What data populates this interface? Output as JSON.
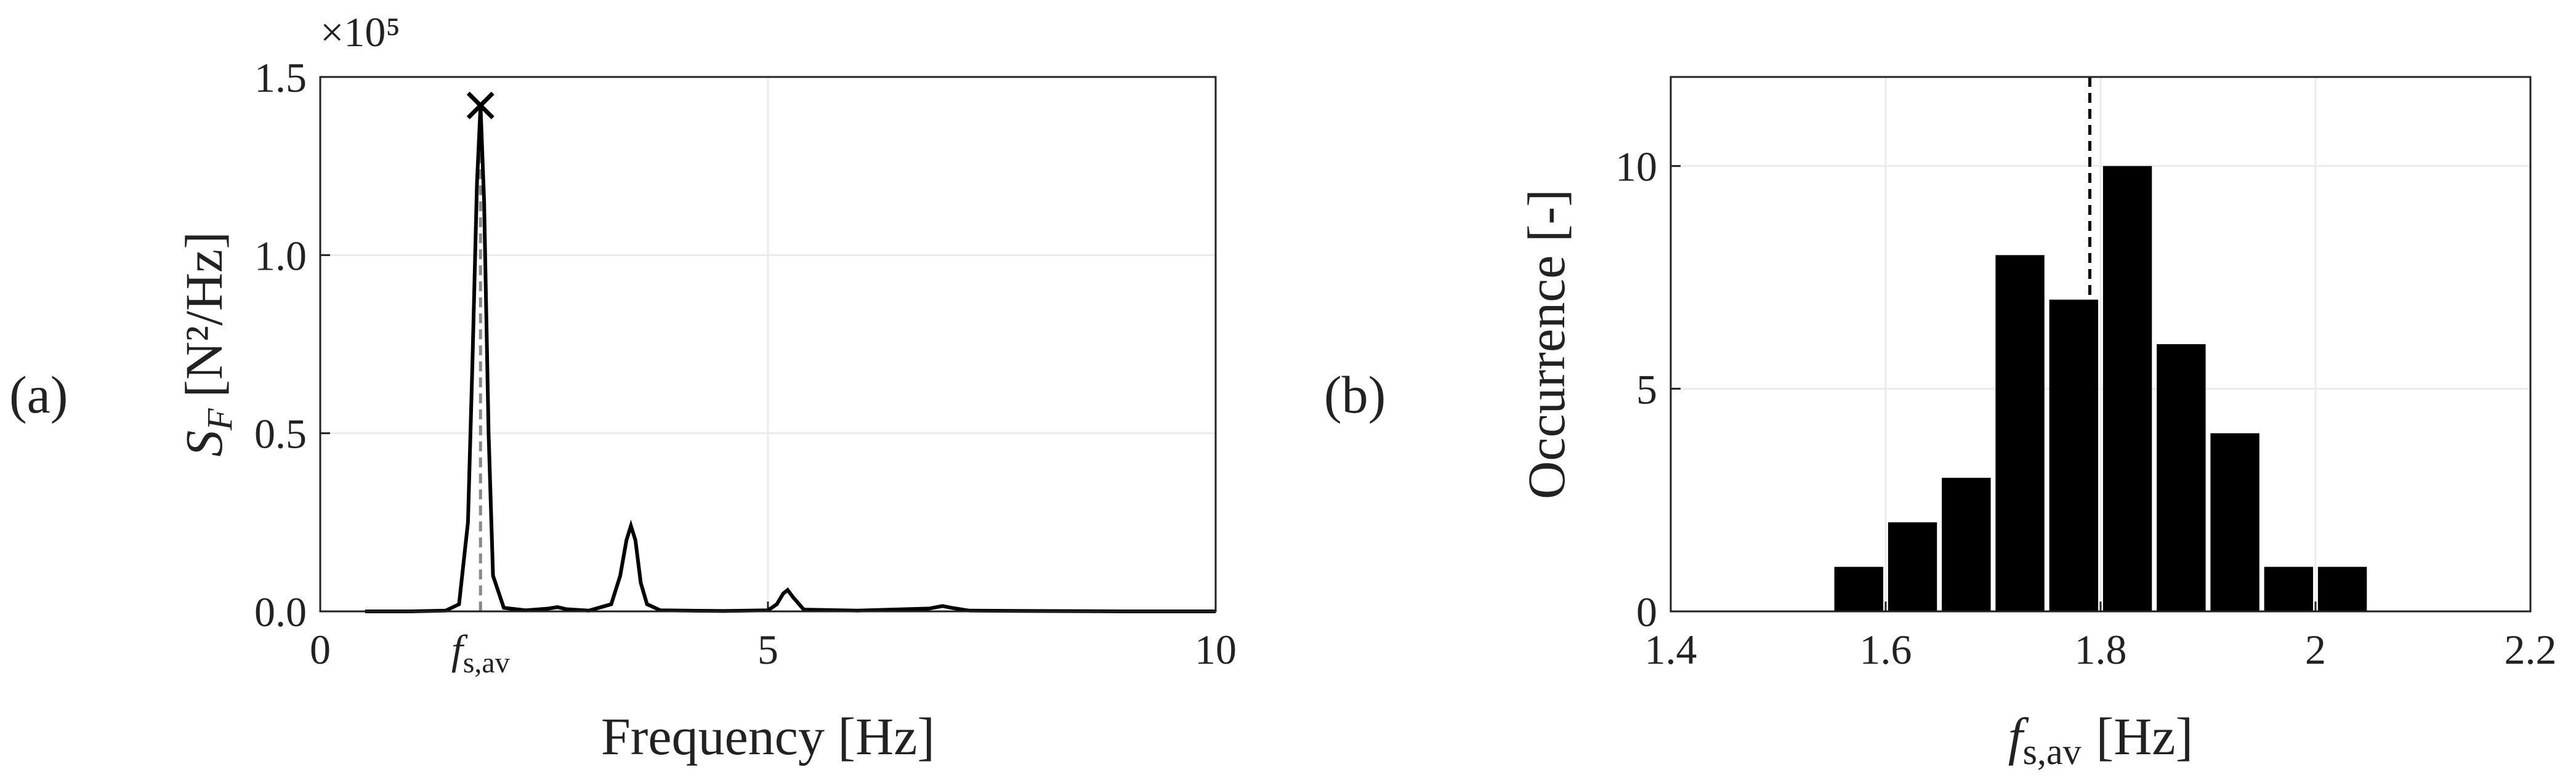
{
  "chart_data": [
    {
      "type": "line",
      "panel": "(a)",
      "multiplier": "×10⁵",
      "xlabel": "Frequency [Hz]",
      "ylabel": {
        "symbol": "S",
        "subscript": "F",
        "unit": "[N²/Hz]"
      },
      "x": [
        0.5,
        1.0,
        1.4,
        1.55,
        1.65,
        1.7,
        1.75,
        1.79,
        1.83,
        1.88,
        1.93,
        2.05,
        2.3,
        2.55,
        2.65,
        2.75,
        3.0,
        3.25,
        3.35,
        3.42,
        3.47,
        3.52,
        3.58,
        3.65,
        3.8,
        4.5,
        5.0,
        5.1,
        5.17,
        5.22,
        5.28,
        5.4,
        6.0,
        6.8,
        6.95,
        7.05,
        7.25,
        8.0,
        9.0,
        10.0
      ],
      "values": [
        0,
        0,
        0.002,
        0.02,
        0.25,
        0.7,
        1.2,
        1.42,
        1.15,
        0.5,
        0.1,
        0.01,
        0.003,
        0.008,
        0.012,
        0.006,
        0.002,
        0.02,
        0.1,
        0.2,
        0.24,
        0.2,
        0.08,
        0.02,
        0.003,
        0.001,
        0.003,
        0.02,
        0.05,
        0.06,
        0.04,
        0.005,
        0.002,
        0.008,
        0.015,
        0.01,
        0.002,
        0.001,
        0,
        0
      ],
      "color": "#000000",
      "peak": {
        "x": 1.79,
        "y": 1.42
      },
      "xlim": [
        0,
        10
      ],
      "xticks": [
        0,
        {
          "value": 1.79,
          "label": "f",
          "subscript": "s,av"
        },
        5,
        10
      ],
      "ylim": [
        0,
        1.5
      ],
      "yticks": [
        {
          "value": 0,
          "label": "0.0"
        },
        0.5,
        {
          "value": 1,
          "label": "1.0"
        },
        1.5
      ],
      "grid": true
    },
    {
      "type": "histogram",
      "panel": "(b)",
      "xlabel": {
        "symbol": "f",
        "subscript": "s,av",
        "unit": "[Hz]"
      },
      "ylabel": "Occurrence [-]",
      "bins": [
        1.55,
        1.6,
        1.65,
        1.7,
        1.75,
        1.8,
        1.85,
        1.9,
        1.95,
        2.0,
        2.05
      ],
      "values": [
        1,
        2,
        3,
        8,
        7,
        10,
        6,
        4,
        1,
        1
      ],
      "color": "#000000",
      "mean": 1.79,
      "xlim": [
        1.4,
        2.2
      ],
      "xticks": [
        1.4,
        1.6,
        1.8,
        2,
        2.2
      ],
      "ylim": [
        0,
        12
      ],
      "yticks": [
        0,
        5,
        10
      ],
      "grid": true
    }
  ]
}
